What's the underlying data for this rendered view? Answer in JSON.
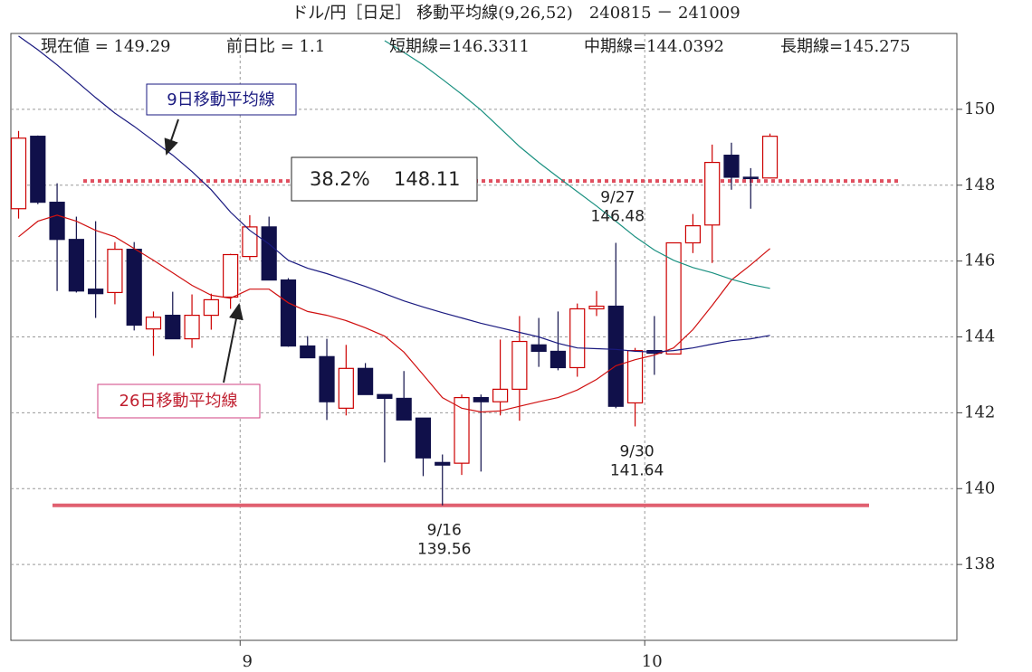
{
  "chart_data": {
    "type": "candlestick",
    "title": "ドル/円［日足］ 移動平均線(9,26,52)　240815 － 241009",
    "info": [
      "現在値 = 149.29",
      "前日比 = 1.1",
      "短期線=146.3311",
      "中期線=144.0392",
      "長期線=145.275"
    ],
    "x": [
      0,
      1,
      2,
      3,
      4,
      5,
      6,
      7,
      8,
      9,
      10,
      11,
      12,
      13,
      14,
      15,
      16,
      17,
      18,
      19,
      20,
      21,
      22,
      23,
      24,
      25,
      26,
      27,
      28,
      29,
      30,
      31,
      32,
      33,
      34,
      35,
      36,
      37,
      38,
      39
    ],
    "open": [
      147.38,
      149.29,
      147.55,
      146.57,
      145.26,
      145.17,
      146.31,
      144.21,
      144.57,
      143.95,
      144.57,
      145.05,
      146.12,
      146.9,
      145.5,
      143.76,
      143.48,
      142.12,
      143.17,
      142.48,
      142.38,
      141.86,
      140.69,
      140.67,
      142.4,
      142.29,
      142.62,
      143.79,
      143.62,
      143.19,
      144.74,
      144.81,
      142.26,
      143.64,
      143.55,
      146.48,
      146.95,
      148.79,
      148.21,
      148.19
    ],
    "high": [
      149.43,
      149.31,
      148.05,
      147.17,
      147.05,
      146.5,
      146.5,
      144.67,
      145.19,
      145.12,
      145.14,
      146.19,
      147.21,
      147.17,
      145.55,
      144.02,
      143.95,
      143.79,
      143.31,
      142.48,
      143.1,
      141.86,
      140.9,
      142.48,
      142.48,
      143.93,
      144.55,
      144.5,
      144.67,
      144.88,
      145.21,
      146.48,
      143.71,
      144.55,
      146.48,
      147.24,
      149.07,
      149.12,
      148.45,
      149.36
    ],
    "low": [
      147.12,
      147.5,
      145.21,
      145.17,
      144.5,
      144.86,
      144.17,
      143.5,
      143.95,
      143.71,
      144.19,
      144.74,
      146.02,
      145.5,
      143.74,
      143.45,
      141.81,
      141.93,
      142.48,
      140.69,
      141.81,
      140.33,
      139.56,
      140.36,
      140.45,
      141.93,
      141.79,
      143.21,
      143.12,
      142.95,
      144.55,
      142.12,
      141.64,
      143.0,
      143.55,
      146.21,
      145.95,
      147.88,
      147.38,
      148.19
    ],
    "close": [
      149.24,
      147.55,
      146.57,
      145.21,
      145.14,
      146.31,
      144.31,
      144.52,
      143.95,
      144.57,
      144.98,
      146.17,
      146.9,
      145.5,
      143.76,
      143.45,
      142.29,
      143.17,
      142.48,
      142.38,
      141.81,
      140.81,
      140.62,
      142.4,
      142.29,
      142.62,
      143.88,
      143.62,
      143.19,
      144.74,
      144.81,
      142.17,
      143.64,
      143.57,
      146.48,
      146.93,
      148.6,
      148.21,
      148.19,
      149.29
    ],
    "up_color": "#cc0000",
    "down_color": "#10104a",
    "lines": [
      {
        "color": "#d01010",
        "values": [
          146.64,
          147.05,
          147.21,
          147.05,
          146.81,
          146.64,
          146.33,
          146.02,
          145.69,
          145.36,
          145.1,
          145.02,
          145.26,
          145.26,
          144.9,
          144.67,
          144.57,
          144.43,
          144.24,
          144.02,
          143.6,
          143.0,
          142.4,
          142.12,
          142.02,
          142.05,
          142.17,
          142.29,
          142.4,
          142.6,
          142.88,
          143.24,
          143.4,
          143.52,
          143.71,
          144.19,
          144.83,
          145.5,
          145.9,
          146.33
        ]
      },
      {
        "color": "#1a1a80",
        "values": [
          151.93,
          151.57,
          151.17,
          150.74,
          150.31,
          149.9,
          149.55,
          149.17,
          148.79,
          148.36,
          147.88,
          147.29,
          146.81,
          146.45,
          146.02,
          145.81,
          145.67,
          145.5,
          145.33,
          145.14,
          144.95,
          144.79,
          144.64,
          144.5,
          144.36,
          144.24,
          144.12,
          144.0,
          143.83,
          143.71,
          143.69,
          143.67,
          143.62,
          143.6,
          143.64,
          143.71,
          143.81,
          143.9,
          143.95,
          144.04
        ]
      },
      {
        "color": "#1a9080",
        "values": [
          null,
          null,
          null,
          null,
          null,
          null,
          null,
          null,
          null,
          null,
          null,
          null,
          null,
          null,
          null,
          null,
          null,
          null,
          null,
          151.81,
          151.5,
          151.17,
          150.79,
          150.4,
          149.98,
          149.5,
          149.02,
          148.6,
          148.21,
          147.83,
          147.45,
          147.05,
          146.64,
          146.29,
          146.02,
          145.83,
          145.69,
          145.52,
          145.38,
          145.28
        ]
      }
    ],
    "hlines": [
      {
        "value": 148.11,
        "label": "38.2%",
        "color": "#e05060",
        "style": "dotted"
      },
      {
        "value": 139.56,
        "color": "#e06070",
        "style": "solid"
      }
    ],
    "points": [
      {
        "text": "9/27",
        "value": 146.48,
        "index": 31,
        "position": "above"
      },
      {
        "text": "9/30",
        "value": 141.64,
        "index": 32,
        "position": "below"
      },
      {
        "text": "9/16",
        "value": 139.56,
        "index": 22,
        "position": "below"
      }
    ],
    "annotations": [
      "9日移動平均線",
      "26日移動平均線"
    ],
    "xlim": [
      -0.4,
      48.7
    ],
    "xticks": [
      {
        "value": 11.5,
        "label": "9"
      },
      {
        "value": 32.5,
        "label": "10"
      }
    ],
    "ylim": [
      136,
      152
    ],
    "yticks": [
      138,
      140,
      142,
      144,
      146,
      148,
      150
    ],
    "grid": true
  }
}
